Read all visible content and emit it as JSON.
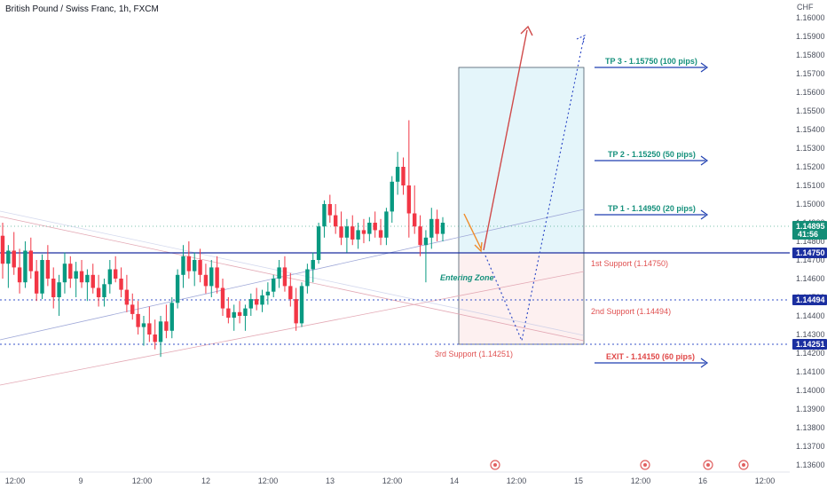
{
  "header": {
    "title": "British Pound / Swiss Franc, 1h, FXCM",
    "currency": "CHF"
  },
  "colors": {
    "bull": "#089981",
    "bear": "#f23645",
    "support": "#1b2fa0",
    "support_dot": "#3550c8",
    "tp_text": "#15907c",
    "tp_arrow": "#1f3fb0",
    "exit_text": "#e04848",
    "support_text": "#e05252",
    "target_fill": "#e4f5fa",
    "stop_fill": "#fdf0f0",
    "price_tag": "#138d77",
    "up_arrow": "#d04a4a",
    "down_arrow": "#f08c2a",
    "path_dot": "#3550c8"
  },
  "chart_data": {
    "type": "candlestick",
    "y_axis": {
      "range": [
        1.1355,
        1.1625
      ],
      "ticks": [
        "1.16000",
        "1.15900",
        "1.15800",
        "1.15700",
        "1.15600",
        "1.15500",
        "1.15400",
        "1.15300",
        "1.15200",
        "1.15100",
        "1.15000",
        "1.14900",
        "1.14800",
        "1.14700",
        "1.14600",
        "1.14500",
        "1.14400",
        "1.14300",
        "1.14200",
        "1.14100",
        "1.14000",
        "1.13900",
        "1.13800",
        "1.13700",
        "1.13600"
      ]
    },
    "x_axis": {
      "labels": [
        "12:00",
        "9",
        "12:00",
        "12",
        "12:00",
        "13",
        "12:00",
        "14",
        "12:00",
        "15",
        "12:00",
        "16",
        "12:00"
      ]
    },
    "last_price": {
      "value": "1.14895",
      "countdown": "41:56"
    },
    "levels": [
      {
        "value": 1.1475,
        "label": "1.14750",
        "style": "solid"
      },
      {
        "value": 1.14494,
        "label": "1.14494",
        "style": "dotted"
      },
      {
        "value": 1.14251,
        "label": "1.14251",
        "style": "dotted"
      }
    ],
    "annotations": {
      "tp3": "TP 3 - 1.15750 (100 pips)",
      "tp2": "TP 2 - 1.15250 (50 pips)",
      "tp1": "TP 1 - 1.14950 (20 pips)",
      "support1": "1st Support  (1.14750)",
      "support2": "2nd Support (1.14494)",
      "support3": "3rd Support (1.14251)",
      "exit": "EXIT - 1.14150 (60 pips)",
      "entry_zone": "Entering Zone"
    },
    "candles": [
      [
        1.1483,
        1.149,
        1.146,
        1.1468
      ],
      [
        1.1468,
        1.1478,
        1.1455,
        1.1475
      ],
      [
        1.1475,
        1.1485,
        1.1462,
        1.1466
      ],
      [
        1.1466,
        1.1476,
        1.1452,
        1.1458
      ],
      [
        1.1458,
        1.148,
        1.1455,
        1.1475
      ],
      [
        1.1475,
        1.1482,
        1.146,
        1.1464
      ],
      [
        1.1464,
        1.147,
        1.1448,
        1.1452
      ],
      [
        1.1452,
        1.1473,
        1.1449,
        1.147
      ],
      [
        1.147,
        1.1478,
        1.1456,
        1.146
      ],
      [
        1.146,
        1.1466,
        1.1444,
        1.145
      ],
      [
        1.145,
        1.1462,
        1.144,
        1.1458
      ],
      [
        1.1458,
        1.1474,
        1.1452,
        1.1468
      ],
      [
        1.1468,
        1.1472,
        1.1455,
        1.146
      ],
      [
        1.146,
        1.1469,
        1.145,
        1.1464
      ],
      [
        1.1464,
        1.147,
        1.1455,
        1.1458
      ],
      [
        1.1458,
        1.1465,
        1.1448,
        1.1462
      ],
      [
        1.1462,
        1.1468,
        1.1452,
        1.1455
      ],
      [
        1.1455,
        1.1462,
        1.1445,
        1.145
      ],
      [
        1.145,
        1.146,
        1.1445,
        1.1457
      ],
      [
        1.1457,
        1.147,
        1.1452,
        1.1465
      ],
      [
        1.1465,
        1.1472,
        1.1458,
        1.146
      ],
      [
        1.146,
        1.1466,
        1.145,
        1.1454
      ],
      [
        1.1454,
        1.1462,
        1.1442,
        1.1446
      ],
      [
        1.1446,
        1.1452,
        1.1438,
        1.1441
      ],
      [
        1.1441,
        1.1448,
        1.143,
        1.1434
      ],
      [
        1.1434,
        1.144,
        1.1424,
        1.1436
      ],
      [
        1.1436,
        1.1445,
        1.1426,
        1.143
      ],
      [
        1.143,
        1.1438,
        1.1422,
        1.1426
      ],
      [
        1.1426,
        1.144,
        1.1418,
        1.1437
      ],
      [
        1.1437,
        1.1446,
        1.1428,
        1.1432
      ],
      [
        1.1432,
        1.145,
        1.1428,
        1.1447
      ],
      [
        1.1447,
        1.1465,
        1.1444,
        1.1462
      ],
      [
        1.1462,
        1.1478,
        1.1455,
        1.1472
      ],
      [
        1.1472,
        1.148,
        1.146,
        1.1464
      ],
      [
        1.1464,
        1.1474,
        1.1456,
        1.147
      ],
      [
        1.147,
        1.1476,
        1.1458,
        1.1462
      ],
      [
        1.1462,
        1.1468,
        1.1452,
        1.1456
      ],
      [
        1.1456,
        1.147,
        1.145,
        1.1466
      ],
      [
        1.1466,
        1.1472,
        1.1452,
        1.1455
      ],
      [
        1.1455,
        1.146,
        1.144,
        1.1444
      ],
      [
        1.1444,
        1.145,
        1.1436,
        1.1439
      ],
      [
        1.1439,
        1.1446,
        1.1432,
        1.1442
      ],
      [
        1.1442,
        1.1448,
        1.1436,
        1.144
      ],
      [
        1.144,
        1.1446,
        1.1432,
        1.1444
      ],
      [
        1.1444,
        1.1452,
        1.144,
        1.1449
      ],
      [
        1.1449,
        1.1455,
        1.1443,
        1.1446
      ],
      [
        1.1446,
        1.1454,
        1.1442,
        1.1451
      ],
      [
        1.1451,
        1.1458,
        1.1446,
        1.1453
      ],
      [
        1.1453,
        1.1462,
        1.145,
        1.146
      ],
      [
        1.146,
        1.147,
        1.1455,
        1.1466
      ],
      [
        1.1466,
        1.1472,
        1.1453,
        1.1456
      ],
      [
        1.1456,
        1.1463,
        1.1445,
        1.1449
      ],
      [
        1.1449,
        1.1455,
        1.1432,
        1.1436
      ],
      [
        1.1436,
        1.1458,
        1.1434,
        1.1456
      ],
      [
        1.1456,
        1.1468,
        1.1452,
        1.1465
      ],
      [
        1.1465,
        1.1474,
        1.1458,
        1.147
      ],
      [
        1.147,
        1.149,
        1.1468,
        1.1488
      ],
      [
        1.1488,
        1.1502,
        1.1482,
        1.15
      ],
      [
        1.15,
        1.1505,
        1.149,
        1.1494
      ],
      [
        1.1494,
        1.15,
        1.1484,
        1.1488
      ],
      [
        1.1488,
        1.1496,
        1.1478,
        1.1482
      ],
      [
        1.1482,
        1.1492,
        1.1474,
        1.1488
      ],
      [
        1.1488,
        1.1494,
        1.1478,
        1.1481
      ],
      [
        1.1481,
        1.149,
        1.1476,
        1.1486
      ],
      [
        1.1486,
        1.1492,
        1.1479,
        1.1484
      ],
      [
        1.1484,
        1.1493,
        1.148,
        1.149
      ],
      [
        1.149,
        1.1496,
        1.1482,
        1.1486
      ],
      [
        1.1486,
        1.1492,
        1.1478,
        1.1482
      ],
      [
        1.1482,
        1.1498,
        1.1478,
        1.1496
      ],
      [
        1.1496,
        1.1515,
        1.149,
        1.1512
      ],
      [
        1.1512,
        1.1528,
        1.1505,
        1.152
      ],
      [
        1.152,
        1.1525,
        1.1505,
        1.151
      ],
      [
        1.151,
        1.1545,
        1.1482,
        1.1495
      ],
      [
        1.1495,
        1.151,
        1.1484,
        1.1488
      ],
      [
        1.1488,
        1.1494,
        1.1472,
        1.1478
      ],
      [
        1.1478,
        1.1486,
        1.1458,
        1.1482
      ],
      [
        1.1482,
        1.1498,
        1.1476,
        1.1492
      ],
      [
        1.1492,
        1.1497,
        1.148,
        1.1484
      ],
      [
        1.1484,
        1.1493,
        1.148,
        1.149
      ]
    ]
  }
}
